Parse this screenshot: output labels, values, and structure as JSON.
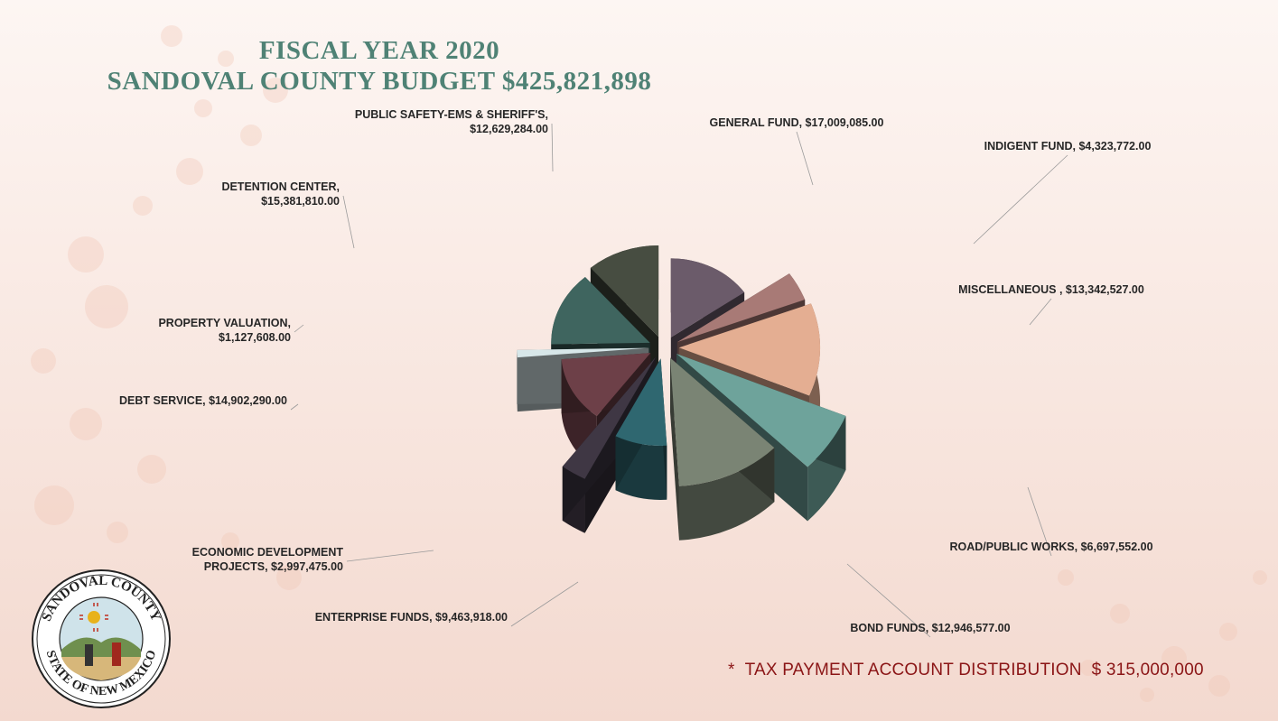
{
  "header": {
    "title_line1": "FISCAL YEAR 2020",
    "title_line2": "SANDOVAL COUNTY BUDGET $425,821,898"
  },
  "footnote": {
    "marker": "*",
    "label": "TAX PAYMENT ACCOUNT DISTRIBUTION",
    "amount": "$ 315,000,000"
  },
  "seal": {
    "top_text": "SANDOVAL COUNTY",
    "bottom_text": "STATE OF NEW MEXICO"
  },
  "colors": {
    "title": "#4f8275",
    "footnote": "#8b1516",
    "background_top": "#fdf6f3",
    "background_bottom": "#f3d9cf"
  },
  "chart_data": {
    "type": "pie",
    "style": "3d-exploded",
    "title": "SANDOVAL COUNTY BUDGET $425,821,898",
    "total": 425821898,
    "slices": [
      {
        "category": "GENERAL FUND",
        "label_lines": [
          "GENERAL FUND, $17,009,085.00"
        ],
        "value": 17009085.0,
        "color": "#6b5b6a"
      },
      {
        "category": "INDIGENT FUND",
        "label_lines": [
          "INDIGENT FUND, $4,323,772.00"
        ],
        "value": 4323772.0,
        "color": "#a87a76"
      },
      {
        "category": "MISCELLANEOUS",
        "label_lines": [
          "MISCELLANEOUS , $13,342,527.00"
        ],
        "value": 13342527.0,
        "color": "#e4ae92"
      },
      {
        "category": "ROAD/PUBLIC WORKS",
        "label_lines": [
          "ROAD/PUBLIC WORKS, $6,697,552.00"
        ],
        "value": 6697552.0,
        "color": "#6ea39b"
      },
      {
        "category": "BOND FUNDS",
        "label_lines": [
          "BOND FUNDS, $12,946,577.00"
        ],
        "value": 12946577.0,
        "color": "#7a8474"
      },
      {
        "category": "ENTERPRISE FUNDS",
        "label_lines": [
          "ENTERPRISE FUNDS, $9,463,918.00"
        ],
        "value": 9463918.0,
        "color": "#2f6770"
      },
      {
        "category": "ECONOMIC DEVELOPMENT PROJECTS",
        "label_lines": [
          "ECONOMIC DEVELOPMENT",
          "PROJECTS, $2,997,475.00"
        ],
        "value": 2997475.0,
        "color": "#3f3744"
      },
      {
        "category": "DEBT SERVICE",
        "label_lines": [
          "DEBT SERVICE, $14,902,290.00"
        ],
        "value": 14902290.0,
        "color": "#6d4048"
      },
      {
        "category": "PROPERTY VALUATION",
        "label_lines": [
          "PROPERTY VALUATION,",
          "$1,127,608.00"
        ],
        "value": 1127608.0,
        "color": "#d7e7e9"
      },
      {
        "category": "DETENTION CENTER",
        "label_lines": [
          "DETENTION CENTER,",
          "$15,381,810.00"
        ],
        "value": 15381810.0,
        "color": "#3f655f"
      },
      {
        "category": "PUBLIC SAFETY-EMS & SHERIFF'S",
        "label_lines": [
          "PUBLIC SAFETY-EMS & SHERIFF'S,",
          "$12,629,284.00"
        ],
        "value": 12629284.0,
        "color": "#474d41"
      }
    ]
  }
}
